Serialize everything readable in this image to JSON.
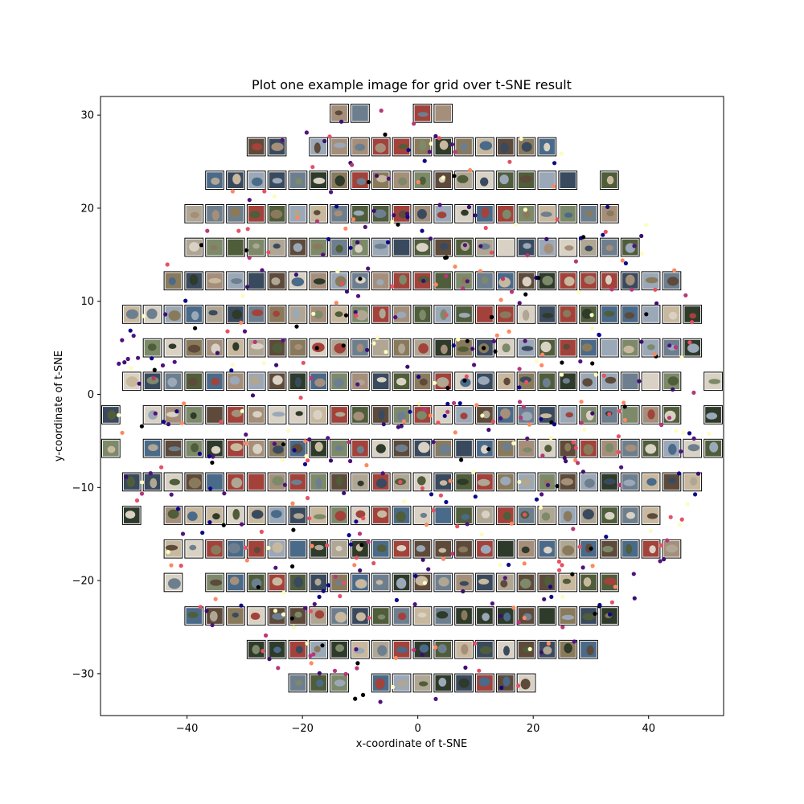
{
  "chart_data": {
    "type": "scatter",
    "title": "Plot one example image for grid over t-SNE result",
    "xlabel": "x-coordinate of t-SNE",
    "ylabel": "y-coordinate of t-SNE",
    "xlim": [
      -55,
      53
    ],
    "ylim": [
      -34.5,
      32
    ],
    "xticks": [
      -40,
      -20,
      0,
      20,
      40
    ],
    "xtick_labels": [
      "−40",
      "−20",
      "0",
      "20",
      "40"
    ],
    "yticks": [
      -30,
      -20,
      -10,
      0,
      10,
      20,
      30
    ],
    "ytick_labels": [
      "−30",
      "−20",
      "−10",
      "0",
      "10",
      "20",
      "30"
    ],
    "grid": false,
    "thumbnail_grid": {
      "description": "one example image per occupied grid cell",
      "cell_size": 3.6,
      "center": [
        -1,
        -1.5
      ],
      "radius_x": 53,
      "radius_y": 33
    },
    "point_colors": [
      "#0d0887",
      "#000004",
      "#51127c",
      "#b73779",
      "#fc8961",
      "#fcfdbf",
      "#3b0f70",
      "#e65164"
    ],
    "thumbnail_palette": [
      "#6d7f8f",
      "#8a7a5c",
      "#4f5d3a",
      "#a58f7a",
      "#3a4a5e",
      "#b0a694",
      "#5e4a3a",
      "#7c8a6a",
      "#9aa8b8",
      "#c8b89e",
      "#2e3a2a",
      "#a3423a",
      "#d9d2c4",
      "#4a6a8a"
    ]
  }
}
